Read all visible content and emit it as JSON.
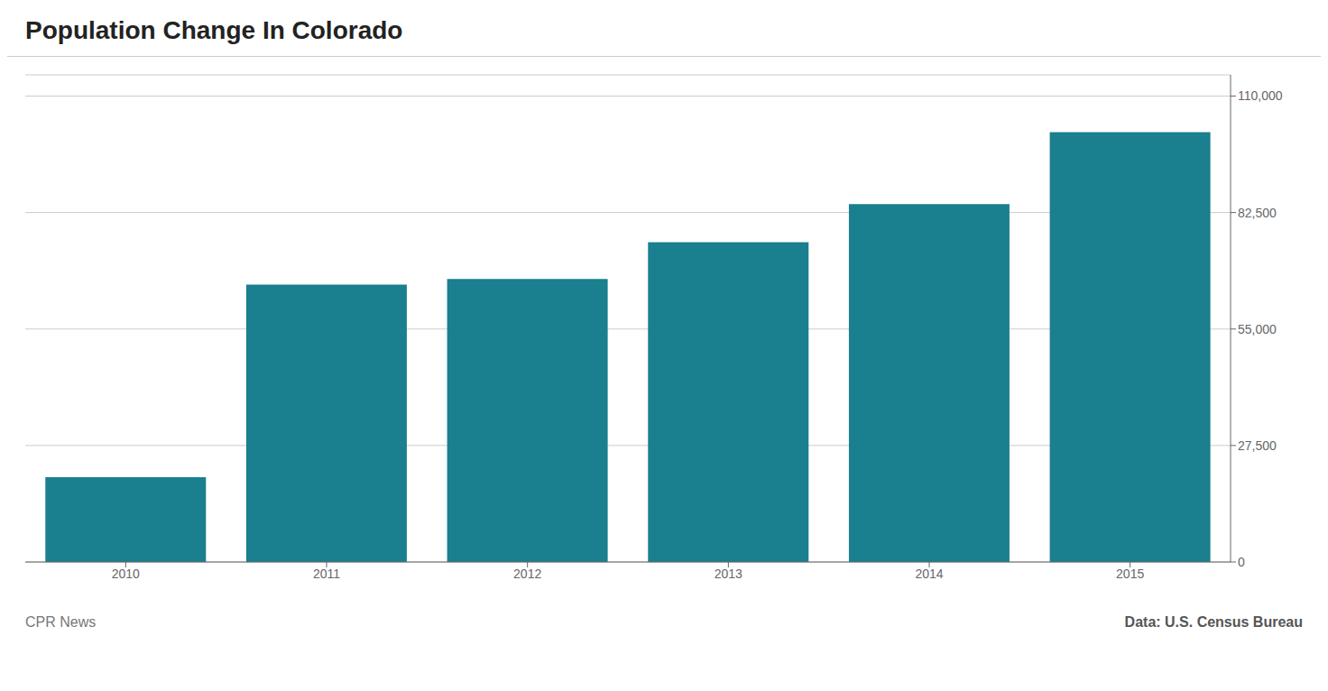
{
  "chart_data": {
    "type": "bar",
    "title": "Population Change In Colorado",
    "categories": [
      "2010",
      "2011",
      "2012",
      "2013",
      "2014",
      "2015"
    ],
    "values": [
      20000,
      65500,
      66800,
      75500,
      84500,
      101500
    ],
    "color": "#1a7f8e",
    "ylim": [
      0,
      115000
    ],
    "yticks": [
      0,
      {
        "value": 27500,
        "label": "27,500"
      },
      {
        "value": 55000,
        "label": "55,000"
      },
      {
        "value": 82500,
        "label": "82,500"
      },
      {
        "value": 110000,
        "label": "110,000"
      }
    ],
    "grid": true,
    "annotations": [
      "CPR News",
      "Data: U.S. Census Bureau"
    ]
  }
}
